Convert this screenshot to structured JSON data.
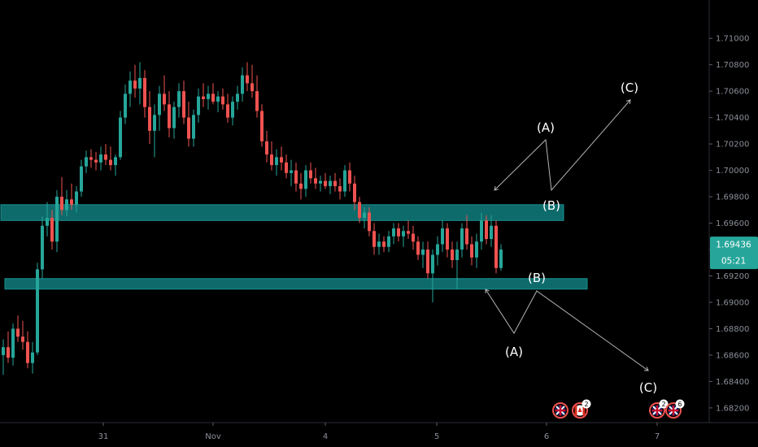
{
  "chart_data": {
    "type": "candlestick",
    "x_ticks": [
      "31",
      "Nov",
      "4",
      "5",
      "6",
      "7"
    ],
    "y_ticks": [
      "1.71000",
      "1.70800",
      "1.70600",
      "1.70400",
      "1.70200",
      "1.70000",
      "1.69800",
      "1.69600",
      "1.69400",
      "1.69200",
      "1.69000",
      "1.68800",
      "1.68600",
      "1.68400",
      "1.68200"
    ],
    "ylim": [
      1.6815,
      1.7118
    ],
    "current_price": "1.69436",
    "countdown": "05:21",
    "colors": {
      "up": "#26a69a",
      "down": "#ef5350",
      "zone": "#0e6b6b",
      "zone_border": "#1a8f8f",
      "arrow": "#b5b5b5"
    },
    "zones": [
      {
        "name": "resistance-zone",
        "low": 1.6962,
        "high": 1.6974
      },
      {
        "name": "support-zone",
        "low": 1.691,
        "high": 1.6918
      }
    ],
    "wave_labels": {
      "upper": [
        "(A)",
        "(B)",
        "(C)"
      ],
      "lower": [
        "(A)",
        "(B)",
        "(C)"
      ]
    },
    "event_badges": [
      {
        "flag": "uk-flag",
        "count": ""
      },
      {
        "flag": "canada-flag",
        "count": "2"
      },
      {
        "flag": "uk-flag",
        "count": "2"
      },
      {
        "flag": "uk-flag",
        "count": "6"
      }
    ],
    "candles": [
      [
        1.686,
        1.6872,
        1.6845,
        1.6866
      ],
      [
        1.6866,
        1.6878,
        1.6854,
        1.6858
      ],
      [
        1.6858,
        1.6884,
        1.6852,
        1.688
      ],
      [
        1.688,
        1.689,
        1.687,
        1.6874
      ],
      [
        1.6874,
        1.6886,
        1.6864,
        1.687
      ],
      [
        1.687,
        1.6878,
        1.685,
        1.6854
      ],
      [
        1.6854,
        1.687,
        1.6846,
        1.6862
      ],
      [
        1.6862,
        1.693,
        1.686,
        1.6925
      ],
      [
        1.6925,
        1.6965,
        1.6918,
        1.6958
      ],
      [
        1.6958,
        1.6976,
        1.695,
        1.6964
      ],
      [
        1.6964,
        1.697,
        1.694,
        1.6946
      ],
      [
        1.6946,
        1.6985,
        1.6938,
        1.698
      ],
      [
        1.698,
        1.6995,
        1.6966,
        1.697
      ],
      [
        1.697,
        1.6985,
        1.6965,
        1.6978
      ],
      [
        1.6978,
        1.699,
        1.697,
        1.6974
      ],
      [
        1.6974,
        1.6988,
        1.6968,
        1.6984
      ],
      [
        1.6984,
        1.7008,
        1.698,
        1.7003
      ],
      [
        1.7003,
        1.7015,
        1.6998,
        1.701
      ],
      [
        1.701,
        1.7016,
        1.7002,
        1.7008
      ],
      [
        1.7008,
        1.7014,
        1.7,
        1.7006
      ],
      [
        1.7006,
        1.7018,
        1.7,
        1.7012
      ],
      [
        1.7012,
        1.702,
        1.7004,
        1.7008
      ],
      [
        1.7008,
        1.7018,
        1.7,
        1.7004
      ],
      [
        1.7004,
        1.7012,
        1.6996,
        1.701
      ],
      [
        1.701,
        1.7045,
        1.7008,
        1.704
      ],
      [
        1.704,
        1.7065,
        1.7035,
        1.7058
      ],
      [
        1.7058,
        1.7075,
        1.7048,
        1.7068
      ],
      [
        1.7068,
        1.708,
        1.7055,
        1.7062
      ],
      [
        1.7062,
        1.7082,
        1.705,
        1.707
      ],
      [
        1.707,
        1.7076,
        1.704,
        1.7048
      ],
      [
        1.7048,
        1.706,
        1.702,
        1.703
      ],
      [
        1.703,
        1.705,
        1.701,
        1.7042
      ],
      [
        1.7042,
        1.7064,
        1.703,
        1.7058
      ],
      [
        1.7058,
        1.7072,
        1.7045,
        1.705
      ],
      [
        1.705,
        1.706,
        1.7025,
        1.7032
      ],
      [
        1.7032,
        1.7052,
        1.7024,
        1.7048
      ],
      [
        1.7048,
        1.7066,
        1.704,
        1.706
      ],
      [
        1.706,
        1.7068,
        1.7035,
        1.704
      ],
      [
        1.704,
        1.7052,
        1.7018,
        1.7024
      ],
      [
        1.7024,
        1.7046,
        1.7018,
        1.7042
      ],
      [
        1.7042,
        1.7062,
        1.7036,
        1.7056
      ],
      [
        1.7056,
        1.7066,
        1.7048,
        1.7054
      ],
      [
        1.7054,
        1.7064,
        1.7046,
        1.7058
      ],
      [
        1.7058,
        1.7066,
        1.705,
        1.7052
      ],
      [
        1.7052,
        1.706,
        1.7044,
        1.7056
      ],
      [
        1.7056,
        1.7062,
        1.7046,
        1.705
      ],
      [
        1.705,
        1.7058,
        1.7036,
        1.704
      ],
      [
        1.704,
        1.7056,
        1.7034,
        1.7052
      ],
      [
        1.7052,
        1.7064,
        1.7046,
        1.7058
      ],
      [
        1.7058,
        1.7078,
        1.7052,
        1.7072
      ],
      [
        1.7072,
        1.7082,
        1.706,
        1.7066
      ],
      [
        1.7066,
        1.708,
        1.7055,
        1.706
      ],
      [
        1.706,
        1.7072,
        1.704,
        1.7045
      ],
      [
        1.7045,
        1.705,
        1.7018,
        1.7022
      ],
      [
        1.7022,
        1.703,
        1.7006,
        1.7012
      ],
      [
        1.7012,
        1.7022,
        1.7,
        1.7004
      ],
      [
        1.7004,
        1.7016,
        1.6996,
        1.701
      ],
      [
        1.701,
        1.7018,
        1.7,
        1.7006
      ],
      [
        1.7006,
        1.7012,
        1.6994,
        1.6998
      ],
      [
        1.6998,
        1.7008,
        1.6988,
        1.7
      ],
      [
        1.7,
        1.7006,
        1.6984,
        1.699
      ],
      [
        1.699,
        1.6998,
        1.6978,
        1.6986
      ],
      [
        1.6986,
        1.7004,
        1.698,
        1.7
      ],
      [
        1.7,
        1.7006,
        1.699,
        1.6994
      ],
      [
        1.6994,
        1.7002,
        1.6986,
        1.699
      ],
      [
        1.699,
        1.6996,
        1.6984,
        1.6992
      ],
      [
        1.6992,
        1.6998,
        1.6986,
        1.6988
      ],
      [
        1.6988,
        1.6996,
        1.6982,
        1.6992
      ],
      [
        1.6992,
        1.6998,
        1.6984,
        1.6988
      ],
      [
        1.6988,
        1.6994,
        1.6978,
        1.6984
      ],
      [
        1.6984,
        1.7004,
        1.698,
        1.7
      ],
      [
        1.7,
        1.7006,
        1.6984,
        1.699
      ],
      [
        1.699,
        1.6996,
        1.697,
        1.6976
      ],
      [
        1.6976,
        1.698,
        1.696,
        1.6964
      ],
      [
        1.6964,
        1.6972,
        1.6956,
        1.6968
      ],
      [
        1.6968,
        1.6972,
        1.695,
        1.6954
      ],
      [
        1.6954,
        1.696,
        1.6936,
        1.6942
      ],
      [
        1.6942,
        1.6952,
        1.6936,
        1.6946
      ],
      [
        1.6946,
        1.695,
        1.6938,
        1.6942
      ],
      [
        1.6942,
        1.6954,
        1.6938,
        1.695
      ],
      [
        1.695,
        1.696,
        1.6944,
        1.6956
      ],
      [
        1.6956,
        1.696,
        1.6946,
        1.695
      ],
      [
        1.695,
        1.6958,
        1.6942,
        1.6954
      ],
      [
        1.6954,
        1.6962,
        1.6948,
        1.6952
      ],
      [
        1.6952,
        1.6958,
        1.694,
        1.6946
      ],
      [
        1.6946,
        1.695,
        1.6932,
        1.6936
      ],
      [
        1.6936,
        1.6946,
        1.6926,
        1.694
      ],
      [
        1.694,
        1.6946,
        1.6918,
        1.6922
      ],
      [
        1.6922,
        1.694,
        1.69,
        1.6936
      ],
      [
        1.6936,
        1.695,
        1.6928,
        1.6944
      ],
      [
        1.6944,
        1.6962,
        1.6938,
        1.6956
      ],
      [
        1.6956,
        1.696,
        1.6934,
        1.694
      ],
      [
        1.694,
        1.6946,
        1.6926,
        1.6932
      ],
      [
        1.6932,
        1.6946,
        1.691,
        1.694
      ],
      [
        1.694,
        1.696,
        1.6934,
        1.6956
      ],
      [
        1.6956,
        1.6966,
        1.694,
        1.6944
      ],
      [
        1.6944,
        1.695,
        1.6928,
        1.6934
      ],
      [
        1.6934,
        1.6952,
        1.6926,
        1.6946
      ],
      [
        1.6946,
        1.6968,
        1.694,
        1.6962
      ],
      [
        1.6962,
        1.6966,
        1.6944,
        1.6948
      ],
      [
        1.6948,
        1.6966,
        1.6942,
        1.6958
      ],
      [
        1.6958,
        1.6962,
        1.6922,
        1.6926
      ],
      [
        1.6926,
        1.6944,
        1.6924,
        1.694
      ]
    ]
  }
}
